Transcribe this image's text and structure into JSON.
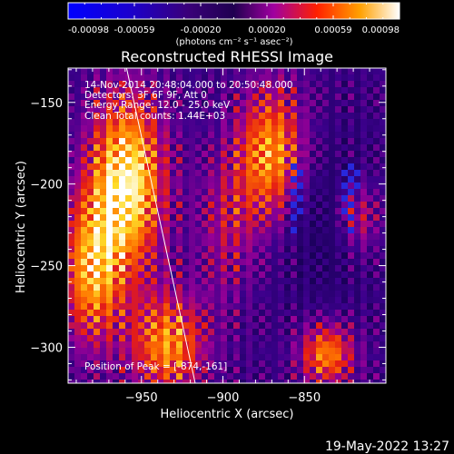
{
  "chart_data": [
    {
      "type": "heatmap",
      "title": "Reconstructed RHESSI Image",
      "xlabel": "Heliocentric X (arcsec)",
      "ylabel": "Heliocentric Y (arcsec)",
      "xlim": [
        -995,
        -800
      ],
      "ylim": [
        -322,
        -129
      ],
      "x_ticks": [
        -950,
        -900,
        -850
      ],
      "y_ticks": [
        -300,
        -250,
        -200,
        -150
      ],
      "annotations": [
        "14-Nov-2014 20:48:04.000 to 20:50:48.000",
        "Detectors: 3F 6F 9F, Att 0",
        "Energy Range: 12.0 - 25.0 keV",
        "Clean    Total counts: 1.44E+03",
        "Position of Peak = [-874,-161]"
      ],
      "peak": {
        "x": -874,
        "y": -161
      },
      "limb_line": {
        "from": [
          -960,
          -125
        ],
        "to": [
          -917,
          -322
        ]
      },
      "grid": false
    },
    {
      "type": "colorbar",
      "range": [
        -0.00098,
        0.00098
      ],
      "tick_labels": [
        "-0.00098",
        "-0.00059",
        "-0.00020",
        "0.00020",
        "0.00059",
        "0.00098"
      ],
      "units": "(photons cm⁻² s⁻¹ asec⁻²)"
    }
  ],
  "colors": {
    "background": "#000000",
    "low": "#0000ff",
    "mid": "#200050",
    "high": "#ff6000",
    "top": "#ffffff"
  },
  "footer": {
    "timestamp": "19-May-2022 13:27"
  }
}
